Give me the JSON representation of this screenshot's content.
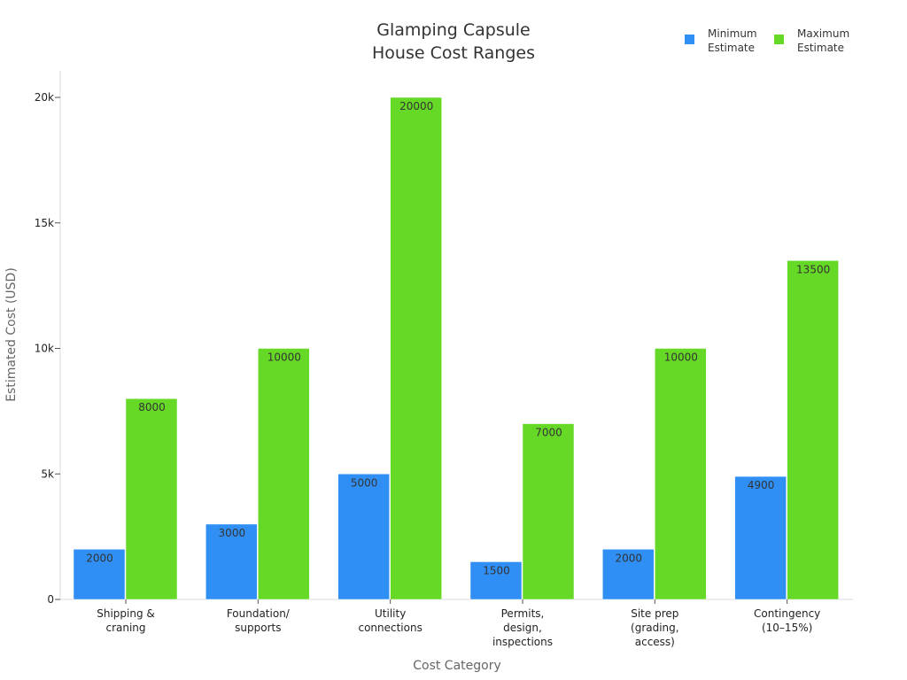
{
  "chart_data": {
    "type": "bar",
    "title_lines": [
      "Glamping Capsule",
      "House Cost Ranges"
    ],
    "xlabel": "Cost Category",
    "ylabel": "Estimated Cost (USD)",
    "ylim": [
      0,
      21000
    ],
    "y_ticks": [
      {
        "value": 0,
        "label": "0"
      },
      {
        "value": 5000,
        "label": "5k"
      },
      {
        "value": 10000,
        "label": "10k"
      },
      {
        "value": 15000,
        "label": "15k"
      },
      {
        "value": 20000,
        "label": "20k"
      }
    ],
    "categories": [
      [
        "Shipping &",
        "craning"
      ],
      [
        "Foundation/",
        "supports"
      ],
      [
        "Utility",
        "connections"
      ],
      [
        "Permits,",
        "design,",
        "inspections"
      ],
      [
        "Site prep",
        "(grading,",
        "access)"
      ],
      [
        "Contingency",
        "(10–15%)"
      ]
    ],
    "series": [
      {
        "name_lines": [
          "Minimum",
          "Estimate"
        ],
        "color": "#2f8ff5",
        "values": [
          2000,
          3000,
          5000,
          1500,
          2000,
          4900
        ]
      },
      {
        "name_lines": [
          "Maximum",
          "Estimate"
        ],
        "color": "#66d926",
        "values": [
          8000,
          10000,
          20000,
          7000,
          10000,
          13500
        ]
      }
    ],
    "grid": false,
    "legend_position": "top-right",
    "data_labels": true
  }
}
